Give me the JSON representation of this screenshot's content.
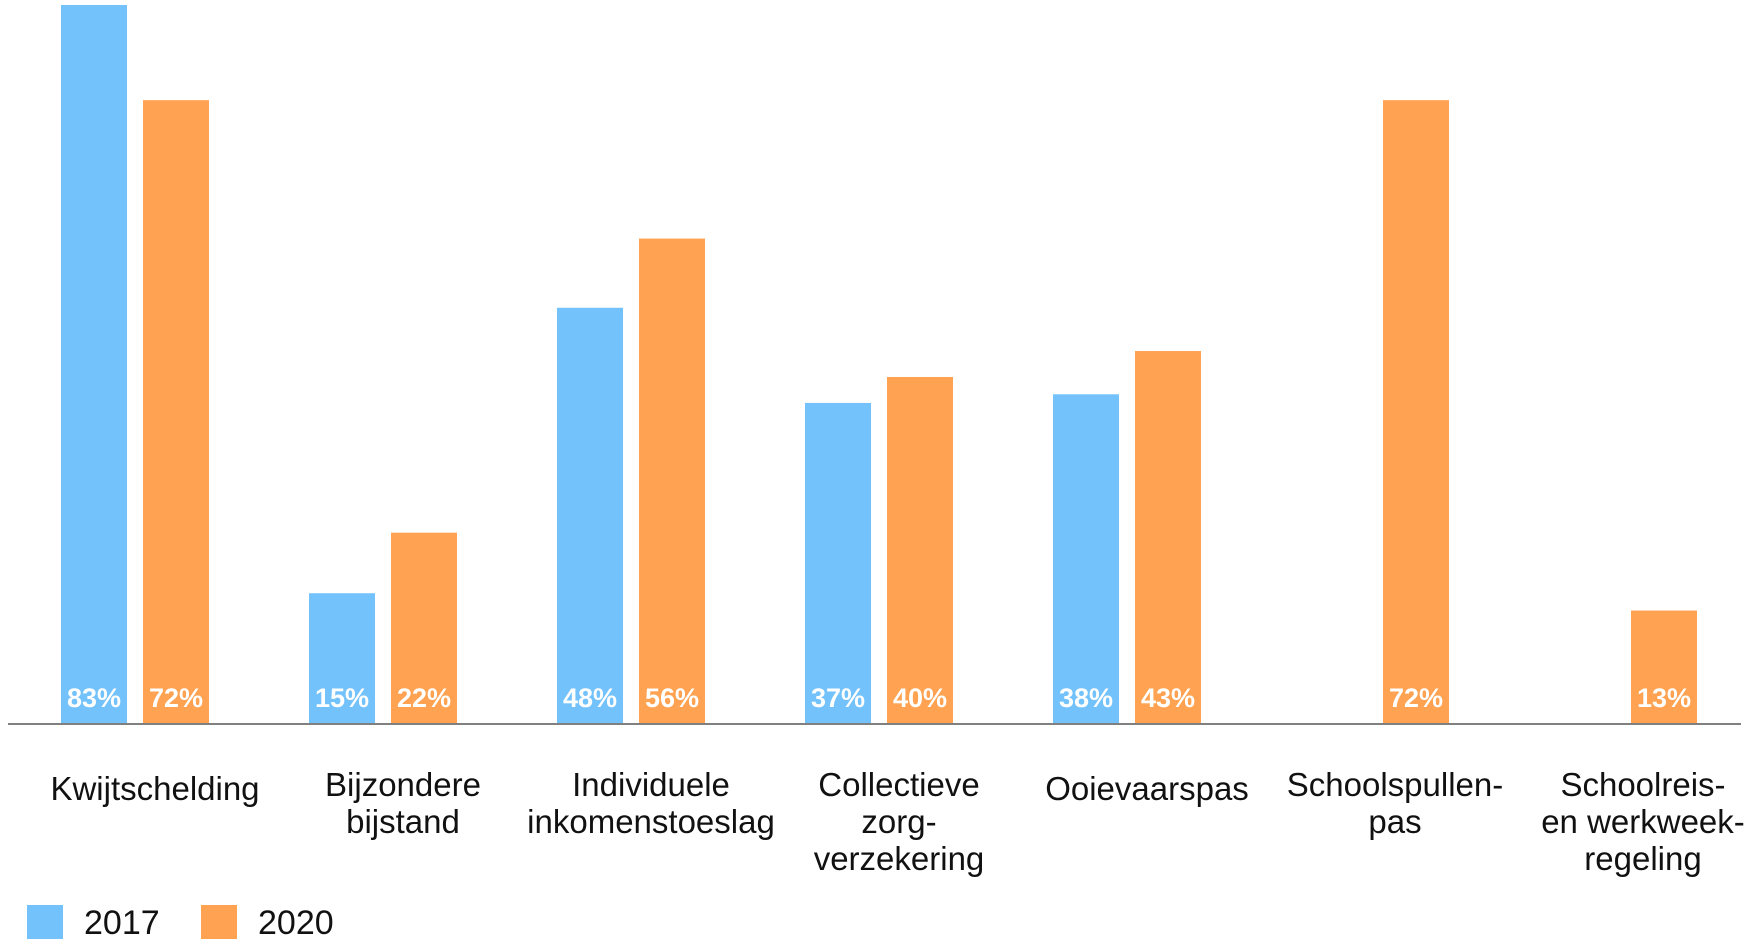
{
  "chart_data": {
    "type": "bar",
    "title": "",
    "xlabel": "",
    "ylabel": "",
    "ylim": [
      0,
      83
    ],
    "grid": false,
    "legend_position": "bottom-left",
    "categories": [
      [
        "Kwijtschelding"
      ],
      [
        "Bijzondere",
        "bijstand"
      ],
      [
        "Individuele",
        "inkomenstoeslag"
      ],
      [
        "Collectieve",
        "zorg-",
        "verzekering"
      ],
      [
        "Ooievaarspas"
      ],
      [
        "Schoolspullen-",
        "pas"
      ],
      [
        "Schoolreis-",
        "en werkweek-",
        "regeling"
      ]
    ],
    "series": [
      {
        "name": "2017",
        "color": "#73C2FB",
        "values": [
          83,
          15,
          48,
          37,
          38,
          null,
          null
        ],
        "labels": [
          "83%",
          "15%",
          "48%",
          "37%",
          "38%",
          "",
          ""
        ]
      },
      {
        "name": "2020",
        "color": "#FFA352",
        "values": [
          72,
          22,
          56,
          40,
          43,
          72,
          13
        ],
        "labels": [
          "72%",
          "22%",
          "56%",
          "40%",
          "43%",
          "72%",
          "13%"
        ]
      }
    ]
  }
}
